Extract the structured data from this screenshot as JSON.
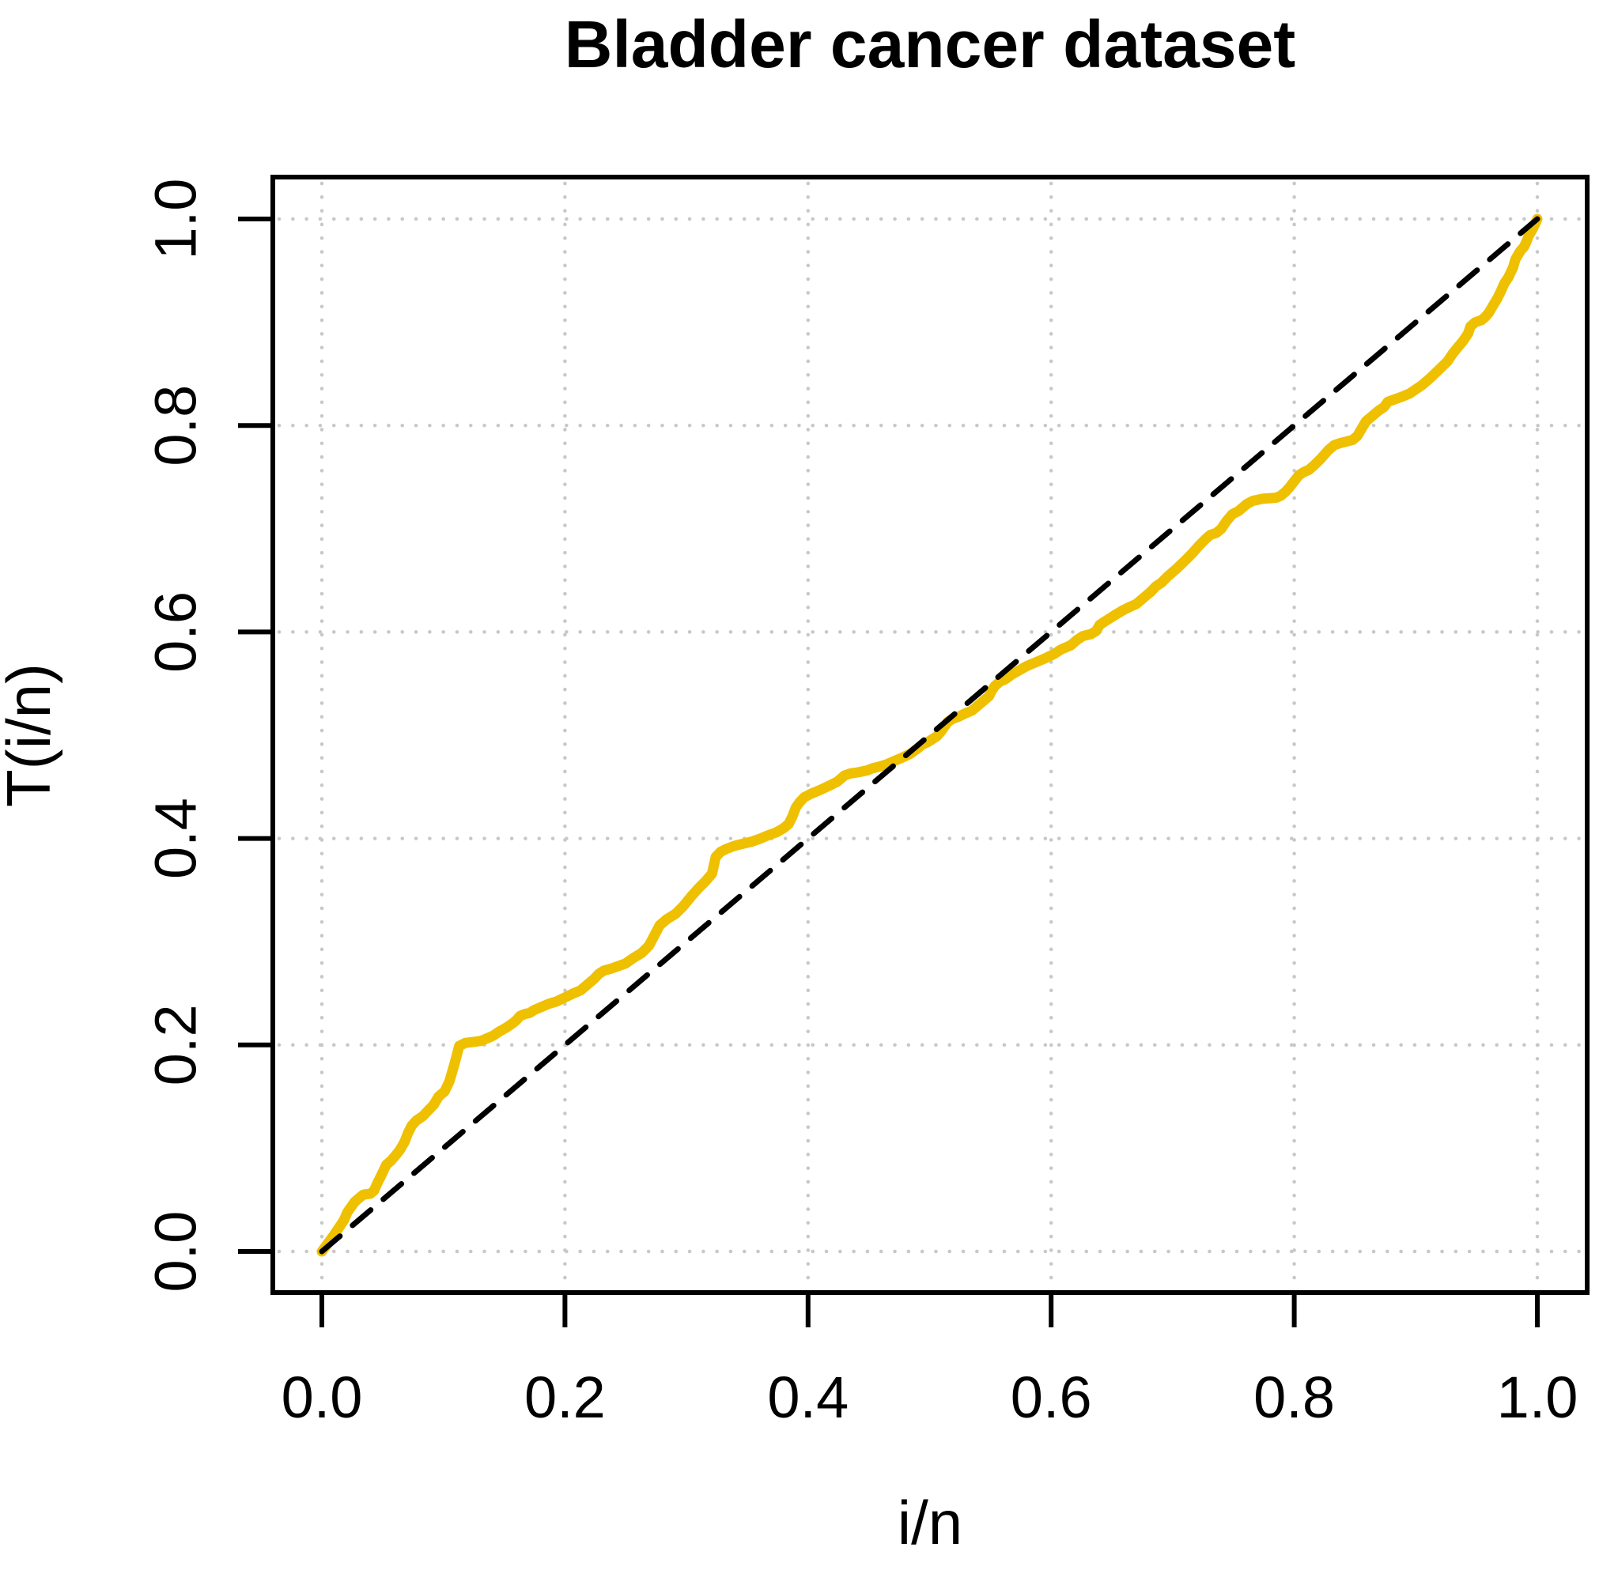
{
  "chart_data": {
    "type": "line",
    "title": "Bladder cancer dataset",
    "xlabel": "i/n",
    "ylabel": "T(i/n)",
    "xlim": [
      0.0,
      1.0
    ],
    "ylim": [
      0.0,
      1.0
    ],
    "x_ticks": [
      0.0,
      0.2,
      0.4,
      0.6,
      0.8,
      1.0
    ],
    "y_ticks": [
      0.0,
      0.2,
      0.4,
      0.6,
      0.8,
      1.0
    ],
    "x_tick_labels": [
      "0.0",
      "0.2",
      "0.4",
      "0.6",
      "0.8",
      "1.0"
    ],
    "y_tick_labels": [
      "0.0",
      "0.2",
      "0.4",
      "0.6",
      "0.8",
      "1.0"
    ],
    "grid": "dotted",
    "grid_color": "#c8c8c8",
    "background": "#ffffff",
    "text_color": "#000000",
    "legend": "none",
    "series": [
      {
        "name": "scaled-TTT-curve",
        "color": "#EFC000",
        "style": "solid",
        "stroke_width": 13,
        "points": [
          [
            0.0,
            0.0
          ],
          [
            0.005,
            0.008
          ],
          [
            0.01,
            0.016
          ],
          [
            0.014,
            0.023
          ],
          [
            0.018,
            0.03
          ],
          [
            0.021,
            0.038
          ],
          [
            0.024,
            0.043
          ],
          [
            0.027,
            0.048
          ],
          [
            0.031,
            0.052
          ],
          [
            0.034,
            0.055
          ],
          [
            0.04,
            0.056
          ],
          [
            0.043,
            0.059
          ],
          [
            0.046,
            0.067
          ],
          [
            0.049,
            0.074
          ],
          [
            0.053,
            0.084
          ],
          [
            0.057,
            0.088
          ],
          [
            0.06,
            0.092
          ],
          [
            0.064,
            0.098
          ],
          [
            0.068,
            0.106
          ],
          [
            0.071,
            0.115
          ],
          [
            0.074,
            0.122
          ],
          [
            0.078,
            0.127
          ],
          [
            0.083,
            0.131
          ],
          [
            0.087,
            0.136
          ],
          [
            0.092,
            0.142
          ],
          [
            0.096,
            0.15
          ],
          [
            0.101,
            0.155
          ],
          [
            0.105,
            0.165
          ],
          [
            0.109,
            0.181
          ],
          [
            0.113,
            0.199
          ],
          [
            0.118,
            0.202
          ],
          [
            0.125,
            0.203
          ],
          [
            0.131,
            0.204
          ],
          [
            0.137,
            0.207
          ],
          [
            0.141,
            0.209
          ],
          [
            0.146,
            0.213
          ],
          [
            0.152,
            0.217
          ],
          [
            0.157,
            0.221
          ],
          [
            0.16,
            0.224
          ],
          [
            0.163,
            0.228
          ],
          [
            0.167,
            0.23
          ],
          [
            0.171,
            0.231
          ],
          [
            0.175,
            0.234
          ],
          [
            0.181,
            0.237
          ],
          [
            0.187,
            0.24
          ],
          [
            0.193,
            0.242
          ],
          [
            0.2,
            0.246
          ],
          [
            0.207,
            0.25
          ],
          [
            0.213,
            0.253
          ],
          [
            0.219,
            0.259
          ],
          [
            0.224,
            0.264
          ],
          [
            0.228,
            0.269
          ],
          [
            0.232,
            0.272
          ],
          [
            0.238,
            0.274
          ],
          [
            0.243,
            0.276
          ],
          [
            0.25,
            0.279
          ],
          [
            0.256,
            0.284
          ],
          [
            0.263,
            0.289
          ],
          [
            0.269,
            0.296
          ],
          [
            0.274,
            0.307
          ],
          [
            0.278,
            0.316
          ],
          [
            0.284,
            0.322
          ],
          [
            0.291,
            0.327
          ],
          [
            0.297,
            0.334
          ],
          [
            0.304,
            0.344
          ],
          [
            0.31,
            0.352
          ],
          [
            0.316,
            0.359
          ],
          [
            0.321,
            0.366
          ],
          [
            0.324,
            0.382
          ],
          [
            0.328,
            0.387
          ],
          [
            0.333,
            0.39
          ],
          [
            0.34,
            0.393
          ],
          [
            0.347,
            0.395
          ],
          [
            0.354,
            0.397
          ],
          [
            0.361,
            0.4
          ],
          [
            0.367,
            0.403
          ],
          [
            0.374,
            0.406
          ],
          [
            0.38,
            0.41
          ],
          [
            0.384,
            0.414
          ],
          [
            0.387,
            0.421
          ],
          [
            0.39,
            0.43
          ],
          [
            0.393,
            0.435
          ],
          [
            0.397,
            0.44
          ],
          [
            0.402,
            0.443
          ],
          [
            0.41,
            0.447
          ],
          [
            0.419,
            0.452
          ],
          [
            0.424,
            0.455
          ],
          [
            0.43,
            0.461
          ],
          [
            0.435,
            0.463
          ],
          [
            0.441,
            0.464
          ],
          [
            0.449,
            0.466
          ],
          [
            0.453,
            0.468
          ],
          [
            0.46,
            0.47
          ],
          [
            0.465,
            0.472
          ],
          [
            0.471,
            0.475
          ],
          [
            0.477,
            0.478
          ],
          [
            0.484,
            0.482
          ],
          [
            0.49,
            0.487
          ],
          [
            0.494,
            0.491
          ],
          [
            0.498,
            0.493
          ],
          [
            0.502,
            0.496
          ],
          [
            0.506,
            0.499
          ],
          [
            0.509,
            0.503
          ],
          [
            0.512,
            0.508
          ],
          [
            0.515,
            0.513
          ],
          [
            0.519,
            0.516
          ],
          [
            0.524,
            0.518
          ],
          [
            0.529,
            0.521
          ],
          [
            0.535,
            0.524
          ],
          [
            0.542,
            0.531
          ],
          [
            0.549,
            0.538
          ],
          [
            0.551,
            0.543
          ],
          [
            0.554,
            0.548
          ],
          [
            0.558,
            0.552
          ],
          [
            0.562,
            0.554
          ],
          [
            0.568,
            0.559
          ],
          [
            0.574,
            0.563
          ],
          [
            0.58,
            0.567
          ],
          [
            0.588,
            0.571
          ],
          [
            0.596,
            0.575
          ],
          [
            0.603,
            0.579
          ],
          [
            0.608,
            0.583
          ],
          [
            0.616,
            0.587
          ],
          [
            0.621,
            0.592
          ],
          [
            0.626,
            0.596
          ],
          [
            0.633,
            0.598
          ],
          [
            0.637,
            0.601
          ],
          [
            0.64,
            0.607
          ],
          [
            0.644,
            0.61
          ],
          [
            0.652,
            0.616
          ],
          [
            0.659,
            0.621
          ],
          [
            0.666,
            0.625
          ],
          [
            0.67,
            0.627
          ],
          [
            0.674,
            0.631
          ],
          [
            0.678,
            0.635
          ],
          [
            0.682,
            0.639
          ],
          [
            0.686,
            0.644
          ],
          [
            0.691,
            0.648
          ],
          [
            0.696,
            0.654
          ],
          [
            0.703,
            0.661
          ],
          [
            0.71,
            0.669
          ],
          [
            0.716,
            0.676
          ],
          [
            0.722,
            0.684
          ],
          [
            0.727,
            0.69
          ],
          [
            0.731,
            0.694
          ],
          [
            0.736,
            0.696
          ],
          [
            0.74,
            0.7
          ],
          [
            0.744,
            0.707
          ],
          [
            0.749,
            0.714
          ],
          [
            0.754,
            0.717
          ],
          [
            0.761,
            0.724
          ],
          [
            0.766,
            0.727
          ],
          [
            0.774,
            0.729
          ],
          [
            0.785,
            0.73
          ],
          [
            0.789,
            0.732
          ],
          [
            0.793,
            0.736
          ],
          [
            0.796,
            0.74
          ],
          [
            0.8,
            0.746
          ],
          [
            0.804,
            0.752
          ],
          [
            0.808,
            0.755
          ],
          [
            0.812,
            0.757
          ],
          [
            0.816,
            0.761
          ],
          [
            0.822,
            0.768
          ],
          [
            0.828,
            0.776
          ],
          [
            0.833,
            0.781
          ],
          [
            0.838,
            0.783
          ],
          [
            0.848,
            0.786
          ],
          [
            0.852,
            0.79
          ],
          [
            0.855,
            0.796
          ],
          [
            0.859,
            0.804
          ],
          [
            0.863,
            0.808
          ],
          [
            0.869,
            0.814
          ],
          [
            0.874,
            0.818
          ],
          [
            0.877,
            0.823
          ],
          [
            0.882,
            0.825
          ],
          [
            0.889,
            0.828
          ],
          [
            0.895,
            0.831
          ],
          [
            0.9,
            0.835
          ],
          [
            0.905,
            0.839
          ],
          [
            0.912,
            0.846
          ],
          [
            0.919,
            0.854
          ],
          [
            0.926,
            0.862
          ],
          [
            0.93,
            0.869
          ],
          [
            0.934,
            0.875
          ],
          [
            0.939,
            0.882
          ],
          [
            0.943,
            0.889
          ],
          [
            0.945,
            0.896
          ],
          [
            0.949,
            0.9
          ],
          [
            0.954,
            0.902
          ],
          [
            0.957,
            0.905
          ],
          [
            0.96,
            0.909
          ],
          [
            0.963,
            0.915
          ],
          [
            0.967,
            0.923
          ],
          [
            0.97,
            0.93
          ],
          [
            0.973,
            0.938
          ],
          [
            0.976,
            0.943
          ],
          [
            0.978,
            0.948
          ],
          [
            0.98,
            0.953
          ],
          [
            0.982,
            0.961
          ],
          [
            0.984,
            0.965
          ],
          [
            0.986,
            0.969
          ],
          [
            0.989,
            0.973
          ],
          [
            0.991,
            0.978
          ],
          [
            0.993,
            0.984
          ],
          [
            0.996,
            0.99
          ],
          [
            1.0,
            1.0
          ]
        ]
      },
      {
        "name": "diagonal-reference-line",
        "color": "#000000",
        "style": "dashed",
        "stroke_width": 7,
        "points": [
          [
            0.0,
            0.0
          ],
          [
            1.0,
            1.0
          ]
        ]
      }
    ]
  }
}
